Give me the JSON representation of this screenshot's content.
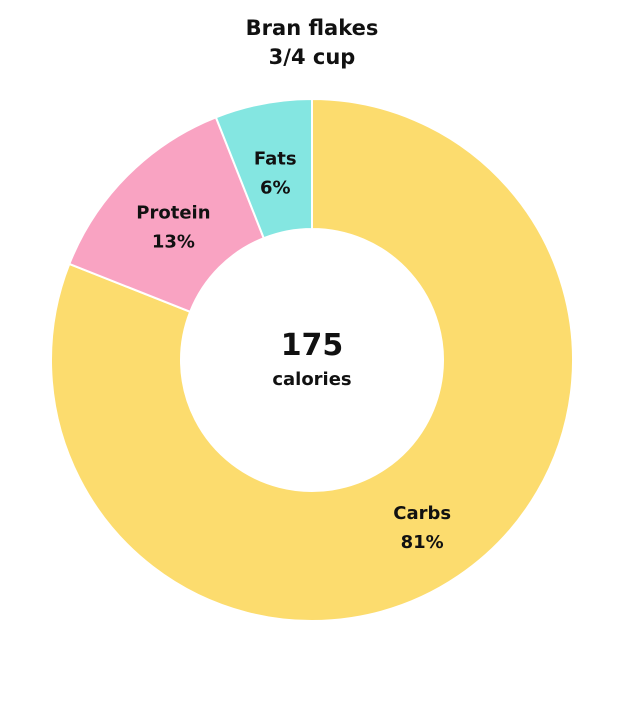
{
  "chart_data": {
    "type": "pie",
    "title": "Bran flakes",
    "subtitle": "3/4 cup",
    "center_value": "175",
    "center_unit": "calories",
    "slices": [
      {
        "label": "Carbs",
        "value": 81,
        "value_label": "81%",
        "color": "#FCDC6E"
      },
      {
        "label": "Protein",
        "value": 13,
        "value_label": "13%",
        "color": "#F9A3C2"
      },
      {
        "label": "Fats",
        "value": 6,
        "value_label": "6%",
        "color": "#84E6E1"
      }
    ],
    "legend": false
  }
}
